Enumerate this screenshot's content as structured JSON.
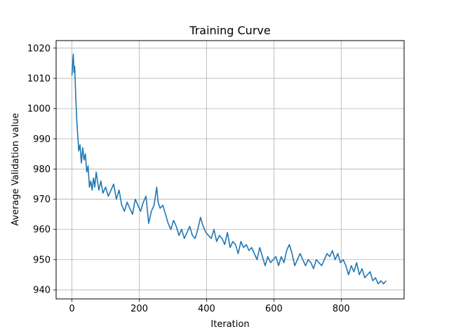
{
  "chart_data": {
    "type": "line",
    "title": "Training Curve",
    "xlabel": "Iteration",
    "ylabel": "Average Validation value",
    "xlim": [
      -47,
      987
    ],
    "ylim": [
      937,
      1022.5
    ],
    "xticks": [
      0,
      200,
      400,
      600,
      800
    ],
    "yticks": [
      940,
      950,
      960,
      970,
      980,
      990,
      1000,
      1010,
      1020
    ],
    "grid": true,
    "legend": "none",
    "series": [
      {
        "color": "#1f77b4",
        "x": [
          0,
          2,
          4,
          6,
          8,
          10,
          12,
          14,
          16,
          18,
          20,
          24,
          28,
          32,
          36,
          40,
          44,
          48,
          52,
          56,
          60,
          64,
          68,
          72,
          76,
          80,
          86,
          92,
          100,
          108,
          116,
          124,
          132,
          140,
          148,
          156,
          164,
          172,
          180,
          188,
          196,
          204,
          212,
          220,
          228,
          236,
          244,
          252,
          256,
          262,
          270,
          278,
          286,
          294,
          302,
          310,
          318,
          326,
          334,
          342,
          350,
          358,
          366,
          374,
          382,
          390,
          398,
          406,
          414,
          422,
          430,
          438,
          446,
          454,
          462,
          470,
          478,
          486,
          494,
          502,
          510,
          518,
          526,
          534,
          542,
          550,
          558,
          566,
          574,
          582,
          590,
          598,
          606,
          614,
          622,
          630,
          638,
          646,
          654,
          662,
          670,
          678,
          686,
          694,
          702,
          710,
          718,
          726,
          734,
          742,
          750,
          758,
          766,
          774,
          782,
          790,
          798,
          806,
          814,
          822,
          830,
          838,
          846,
          854,
          862,
          870,
          878,
          886,
          894,
          902,
          910,
          918,
          926,
          934
        ],
        "y": [
          1011,
          1015,
          1018,
          1012,
          1014,
          1008,
          1002,
          997,
          993,
          990,
          986,
          988,
          982,
          987,
          983,
          985,
          979,
          981,
          974,
          976,
          973,
          977,
          974,
          979,
          976,
          973,
          976,
          972,
          974,
          971,
          973,
          975,
          970,
          973,
          968,
          966,
          969,
          967,
          965,
          970,
          968,
          966,
          969,
          971,
          962,
          966,
          968,
          974,
          969,
          967,
          968,
          965,
          962,
          960,
          963,
          961,
          958,
          960,
          957,
          959,
          961,
          958,
          957,
          960,
          964,
          961,
          959,
          958,
          957,
          960,
          956,
          958,
          957,
          955,
          959,
          954,
          956,
          955,
          952,
          956,
          954,
          955,
          953,
          954,
          952,
          950,
          954,
          951,
          948,
          951,
          949,
          950,
          951,
          948,
          951,
          949,
          953,
          955,
          952,
          948,
          950,
          952,
          950,
          948,
          950,
          949,
          947,
          950,
          949,
          948,
          950,
          952,
          951,
          953,
          950,
          952,
          949,
          950,
          948,
          945,
          948,
          946,
          949,
          945,
          947,
          944,
          945,
          946,
          943,
          944,
          942,
          943,
          942,
          943
        ]
      }
    ]
  }
}
